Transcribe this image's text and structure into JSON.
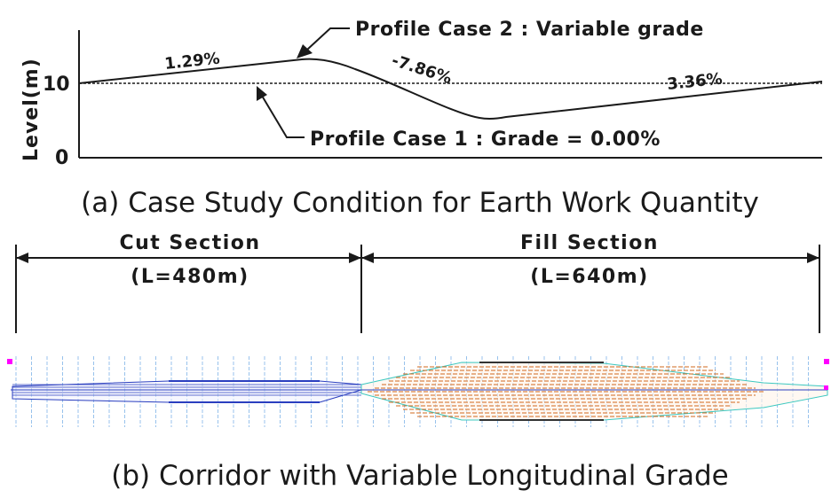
{
  "profile": {
    "ylabel": "Level(m)",
    "y_ticks": [
      "10",
      "0"
    ],
    "case2_label": "Profile Case 2 : Variable grade",
    "case1_label": "Profile Case 1 : Grade = 0.00%",
    "grade_1": "1.29%",
    "grade_2": "-7.86%",
    "grade_3": "3.36%"
  },
  "caption_a": "(a) Case Study Condition for Earth Work Quantity",
  "sections": {
    "cut_title": "Cut Section",
    "cut_length": "(L=480m)",
    "fill_title": "Fill Section",
    "fill_length": "(L=640m)"
  },
  "caption_b": "(b) Corridor with Variable Longitudinal Grade",
  "colors": {
    "line": "#1a1a1a",
    "cut_blue": "#2b3fbf",
    "fill_orange": "#d2691e",
    "station_cyan": "#7fb4e8",
    "marker_magenta": "#ff00ff"
  }
}
